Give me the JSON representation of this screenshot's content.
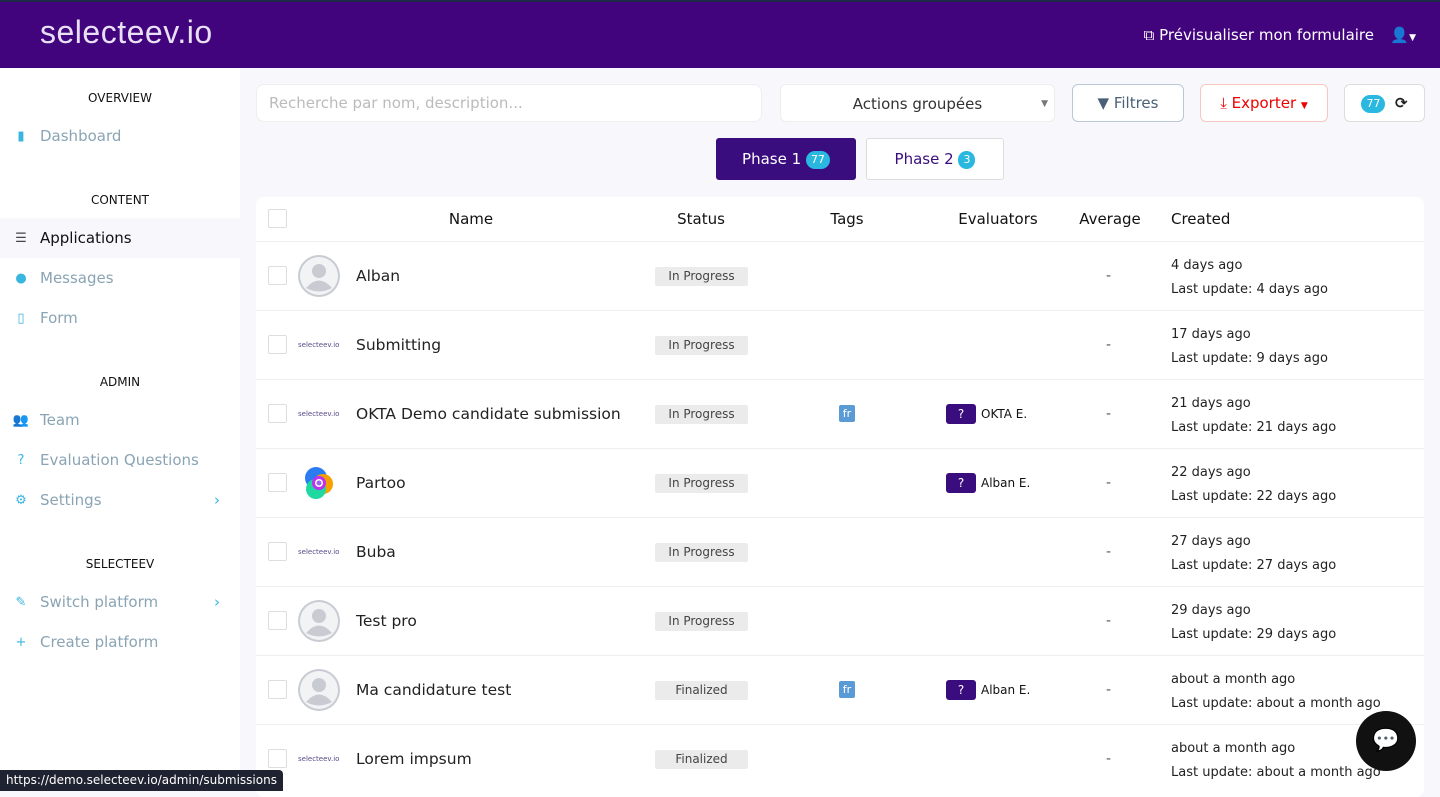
{
  "header": {
    "logo": "selecteev.io",
    "preview": "Prévisualiser mon formulaire",
    "user_icon": "user-icon"
  },
  "sidebar": {
    "sections": [
      {
        "title": "OVERVIEW",
        "items": [
          {
            "label": "Dashboard",
            "icon": "bar-chart-icon"
          }
        ]
      },
      {
        "title": "CONTENT",
        "items": [
          {
            "label": "Applications",
            "icon": "list-icon",
            "active": true
          },
          {
            "label": "Messages",
            "icon": "comment-icon"
          },
          {
            "label": "Form",
            "icon": "file-icon"
          }
        ]
      },
      {
        "title": "ADMIN",
        "items": [
          {
            "label": "Team",
            "icon": "users-icon"
          },
          {
            "label": "Evaluation Questions",
            "icon": "question-icon"
          },
          {
            "label": "Settings",
            "icon": "gear-icon",
            "chevron": true
          }
        ]
      },
      {
        "title": "SELECTEEV",
        "items": [
          {
            "label": "Switch platform",
            "icon": "edit-icon",
            "chevron": true
          },
          {
            "label": "Create platform",
            "icon": "plus-icon"
          }
        ]
      }
    ]
  },
  "toolbar": {
    "search_placeholder": "Recherche par nom, description...",
    "actions": "Actions groupées",
    "filters": "Filtres",
    "export": "Exporter",
    "count": "77"
  },
  "phases": [
    {
      "label": "Phase 1",
      "count": "77",
      "active": true
    },
    {
      "label": "Phase 2",
      "count": "3"
    }
  ],
  "table": {
    "columns": [
      "Name",
      "Status",
      "Tags",
      "Evaluators",
      "Average",
      "Created"
    ],
    "rows": [
      {
        "avatar": "user",
        "name": "Alban",
        "status": "In Progress",
        "tag": "",
        "evaluator": "",
        "average": "-",
        "created": "4 days ago",
        "updated": "Last update: 4 days ago"
      },
      {
        "avatar": "logo",
        "name": "Submitting",
        "status": "In Progress",
        "tag": "",
        "evaluator": "",
        "average": "-",
        "created": "17 days ago",
        "updated": "Last update: 9 days ago"
      },
      {
        "avatar": "logo",
        "name": "OKTA Demo candidate submission",
        "status": "In Progress",
        "tag": "fr",
        "evaluator": "OKTA E.",
        "average": "-",
        "created": "21 days ago",
        "updated": "Last update: 21 days ago"
      },
      {
        "avatar": "partoo",
        "name": "Partoo",
        "status": "In Progress",
        "tag": "",
        "evaluator": "Alban E.",
        "average": "-",
        "created": "22 days ago",
        "updated": "Last update: 22 days ago"
      },
      {
        "avatar": "logo",
        "name": "Buba",
        "status": "In Progress",
        "tag": "",
        "evaluator": "",
        "average": "-",
        "created": "27 days ago",
        "updated": "Last update: 27 days ago"
      },
      {
        "avatar": "user",
        "name": "Test pro",
        "status": "In Progress",
        "tag": "",
        "evaluator": "",
        "average": "-",
        "created": "29 days ago",
        "updated": "Last update: 29 days ago"
      },
      {
        "avatar": "user",
        "name": "Ma candidature test",
        "status": "Finalized",
        "tag": "fr",
        "evaluator": "Alban E.",
        "average": "-",
        "created": "about a month ago",
        "updated": "Last update: about a month ago"
      },
      {
        "avatar": "logo",
        "name": "Lorem impsum",
        "status": "Finalized",
        "tag": "",
        "evaluator": "",
        "average": "-",
        "created": "about a month ago",
        "updated": "Last update: about a month ago"
      }
    ]
  },
  "evaluator_badge": "?",
  "logo_small": "selecteev.io",
  "status_url": "https://demo.selecteev.io/admin/submissions",
  "colors": {
    "brand": "#42047d",
    "accent": "#2ab7e0",
    "export": "#e00000"
  }
}
